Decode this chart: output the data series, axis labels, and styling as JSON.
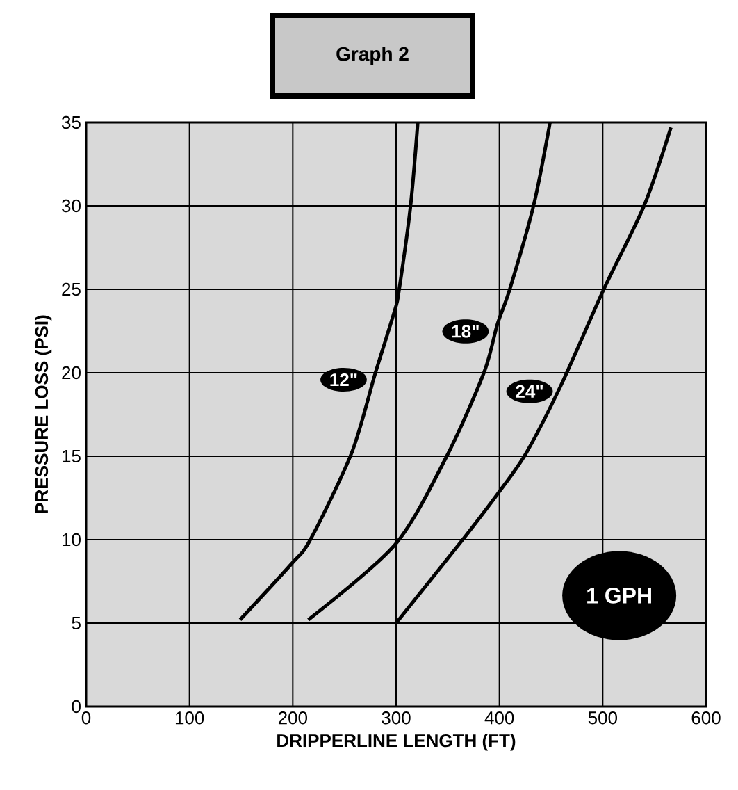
{
  "chart_data": {
    "type": "line",
    "title": "Graph 2",
    "xlabel": "DRIPPERLINE LENGTH (FT)",
    "ylabel": "PRESSURE LOSS (PSI)",
    "series": [
      {
        "name": "12\"",
        "color": "#000000",
        "x": [
          149,
          198,
          217,
          257,
          280,
          299,
          303,
          314,
          321
        ],
        "values": [
          5.2,
          8.5,
          10,
          15.2,
          20,
          23.8,
          25,
          30,
          35
        ]
      },
      {
        "name": "18\"",
        "color": "#000000",
        "x": [
          215,
          299,
          349,
          385,
          398,
          410,
          433,
          449
        ],
        "values": [
          5.2,
          9.7,
          15,
          20,
          22.9,
          25,
          30,
          35
        ]
      },
      {
        "name": "24\"",
        "color": "#000000",
        "x": [
          300,
          367,
          399,
          426,
          460,
          501,
          540,
          566
        ],
        "values": [
          5,
          10.2,
          12.8,
          15.2,
          19.3,
          25,
          30,
          34.7
        ]
      }
    ],
    "annotations": [
      "1 GPH"
    ],
    "xlim": [
      0,
      600
    ],
    "ylim": [
      0,
      35
    ],
    "xticks": [
      0,
      100,
      200,
      300,
      400,
      500,
      600
    ],
    "yticks": [
      0,
      5,
      10,
      15,
      20,
      25,
      30,
      35
    ],
    "grid": true,
    "marker": "none",
    "line_style": "solid"
  }
}
